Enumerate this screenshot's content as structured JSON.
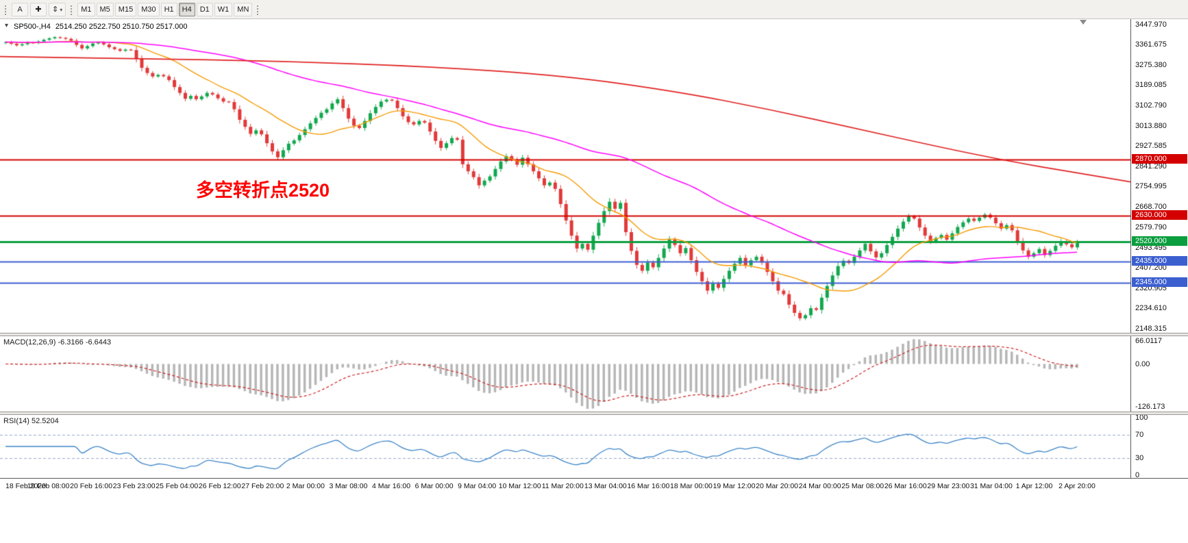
{
  "toolbar": {
    "tools": [
      {
        "label": "A",
        "name": "annotation-tool"
      },
      {
        "label": "✚",
        "name": "crosshair-tool"
      },
      {
        "label": "⇕",
        "name": "chart-tools"
      }
    ],
    "dropdown_caret": "▾",
    "timeframes": [
      "M1",
      "M5",
      "M15",
      "M30",
      "H1",
      "H4",
      "D1",
      "W1",
      "MN"
    ],
    "active_timeframe": "H4"
  },
  "chart": {
    "header_symbol": "SP500-,H4",
    "header_ohlc": "2514.250 2522.750 2510.750 2517.000",
    "annotation": "多空转折点2520",
    "one_click_icon": "▾",
    "price_range": {
      "max": 3470,
      "min": 2130
    },
    "axis_labels": [
      "3447.970",
      "3361.675",
      "3275.380",
      "3189.085",
      "3102.790",
      "3013.880",
      "2927.585",
      "2841.290",
      "2754.995",
      "2668.700",
      "2579.790",
      "2493.495",
      "2407.200",
      "2320.905",
      "2234.610",
      "2148.315"
    ],
    "hlines": [
      {
        "label": "2870.000",
        "price": 2870,
        "color": "#d40000",
        "width": 2
      },
      {
        "label": "2630.000",
        "price": 2630,
        "color": "#d40000",
        "width": 2
      },
      {
        "label": "2520.000",
        "price": 2520,
        "color": "#0b9e3e",
        "width": 3
      },
      {
        "label": "2435.000",
        "price": 2435,
        "color": "#3c5fd0",
        "width": 2
      },
      {
        "label": "2345.000",
        "price": 2345,
        "color": "#3c5fd0",
        "width": 2
      }
    ]
  },
  "macd": {
    "label": "MACD(12,26,9) -6.3166 -6.6443",
    "axis_max": "66.0117",
    "axis_zero": "0.00",
    "axis_min": "-126.173"
  },
  "rsi": {
    "label": "RSI(14) 52.5204",
    "axis_labels": [
      "100",
      "70",
      "30",
      "0"
    ],
    "levels": [
      70,
      30
    ]
  },
  "time_axis": [
    "18 Feb 2020",
    "19 Feb 08:00",
    "20 Feb 16:00",
    "23 Feb 23:00",
    "25 Feb 04:00",
    "26 Feb 12:00",
    "27 Feb 20:00",
    "2 Mar 00:00",
    "3 Mar 08:00",
    "4 Mar 16:00",
    "6 Mar 00:00",
    "9 Mar 04:00",
    "10 Mar 12:00",
    "11 Mar 20:00",
    "13 Mar 04:00",
    "16 Mar 16:00",
    "18 Mar 00:00",
    "19 Mar 12:00",
    "20 Mar 20:00",
    "24 Mar 00:00",
    "25 Mar 08:00",
    "26 Mar 16:00",
    "29 Mar 23:00",
    "31 Mar 04:00",
    "1 Apr 12:00",
    "2 Apr 20:00"
  ],
  "chart_data": {
    "type": "candlestick",
    "symbol": "SP500-",
    "timeframe": "H4",
    "current_ohlc": {
      "open": 2514.25,
      "high": 2522.75,
      "low": 2510.75,
      "close": 2517.0
    },
    "first_open": 3368,
    "closes": [
      3372,
      3365,
      3358,
      3363,
      3370,
      3368,
      3375,
      3382,
      3388,
      3393,
      3390,
      3386,
      3378,
      3360,
      3345,
      3355,
      3366,
      3370,
      3362,
      3350,
      3342,
      3335,
      3340,
      3338,
      3300,
      3262,
      3240,
      3225,
      3232,
      3226,
      3210,
      3180,
      3155,
      3130,
      3142,
      3128,
      3140,
      3155,
      3148,
      3132,
      3118,
      3116,
      3085,
      3040,
      3010,
      2980,
      2995,
      2978,
      2940,
      2905,
      2880,
      2910,
      2938,
      2952,
      2975,
      3000,
      3025,
      3048,
      3070,
      3085,
      3110,
      3128,
      3090,
      3045,
      3015,
      3005,
      3035,
      3068,
      3095,
      3118,
      3126,
      3122,
      3090,
      3055,
      3030,
      3020,
      3035,
      3028,
      2990,
      2950,
      2920,
      2940,
      2962,
      2955,
      2850,
      2820,
      2795,
      2760,
      2780,
      2798,
      2830,
      2862,
      2885,
      2870,
      2848,
      2878,
      2850,
      2820,
      2790,
      2760,
      2772,
      2745,
      2680,
      2610,
      2545,
      2490,
      2510,
      2485,
      2545,
      2600,
      2650,
      2690,
      2660,
      2685,
      2560,
      2480,
      2420,
      2395,
      2430,
      2410,
      2450,
      2490,
      2528,
      2505,
      2470,
      2492,
      2440,
      2390,
      2350,
      2310,
      2340,
      2322,
      2360,
      2395,
      2425,
      2450,
      2418,
      2440,
      2455,
      2430,
      2390,
      2350,
      2310,
      2295,
      2250,
      2215,
      2192,
      2205,
      2235,
      2228,
      2280,
      2330,
      2375,
      2415,
      2438,
      2428,
      2455,
      2482,
      2510,
      2478,
      2452,
      2470,
      2505,
      2540,
      2575,
      2605,
      2628,
      2618,
      2580,
      2545,
      2520,
      2535,
      2548,
      2528,
      2555,
      2582,
      2602,
      2618,
      2608,
      2622,
      2635,
      2622,
      2598,
      2575,
      2590,
      2568,
      2520,
      2482,
      2455,
      2470,
      2488,
      2462,
      2480,
      2502,
      2522,
      2508,
      2495,
      2517
    ],
    "ma_fast_period": 16,
    "ma_mid_period": 60,
    "ma_slow_points": [
      [
        0,
        3310
      ],
      [
        0.12,
        3302
      ],
      [
        0.25,
        3290
      ],
      [
        0.38,
        3268
      ],
      [
        0.5,
        3228
      ],
      [
        0.6,
        3160
      ],
      [
        0.68,
        3085
      ],
      [
        0.76,
        3000
      ],
      [
        0.83,
        2925
      ],
      [
        0.89,
        2865
      ],
      [
        0.95,
        2815
      ],
      [
        1,
        2775
      ]
    ],
    "indicators": {
      "macd": [
        12,
        26,
        9
      ],
      "rsi": 14
    },
    "colors": {
      "up": "#12a84f",
      "down": "#e23a3a",
      "ma_fast": "#f59a00",
      "ma_mid": "#ff00ff",
      "ma_slow": "#e02020",
      "macd_hist": "#b6b6b6",
      "macd_signal": "#cc2222",
      "rsi_line": "#3d85c8",
      "rsi_level": "#93a8c8"
    }
  }
}
